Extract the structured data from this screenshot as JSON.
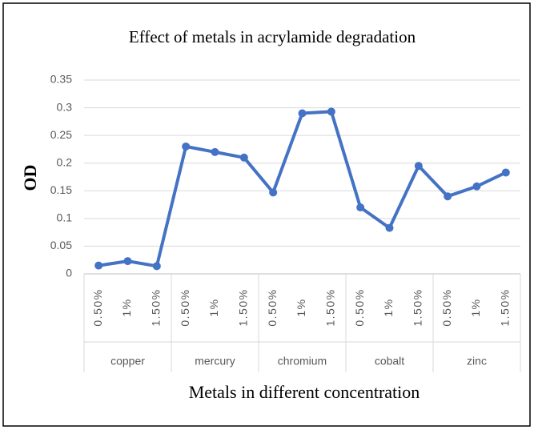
{
  "chart_data": {
    "type": "line",
    "title": "Effect of metals in acrylamide degradation",
    "x_label": "Metals in different concentration",
    "y_label": "OD",
    "groups": [
      "copper",
      "mercury",
      "chromium",
      "cobalt",
      "zinc"
    ],
    "categories": [
      "0.50%",
      "1%",
      "1.50%",
      "0.50%",
      "1%",
      "1.50%",
      "0.50%",
      "1%",
      "1.50%",
      "0.50%",
      "1%",
      "1.50%",
      "0.50%",
      "1%",
      "1.50%"
    ],
    "series": [
      {
        "name": "OD",
        "color": "#4472c4",
        "values": [
          0.015,
          0.023,
          0.014,
          0.23,
          0.22,
          0.21,
          0.147,
          0.29,
          0.293,
          0.12,
          0.083,
          0.195,
          0.14,
          0.158,
          0.183
        ]
      }
    ],
    "ylim": [
      0,
      0.35
    ],
    "yticks": [
      0,
      0.05,
      0.1,
      0.15,
      0.2,
      0.25,
      0.3,
      0.35
    ],
    "grid": true
  }
}
